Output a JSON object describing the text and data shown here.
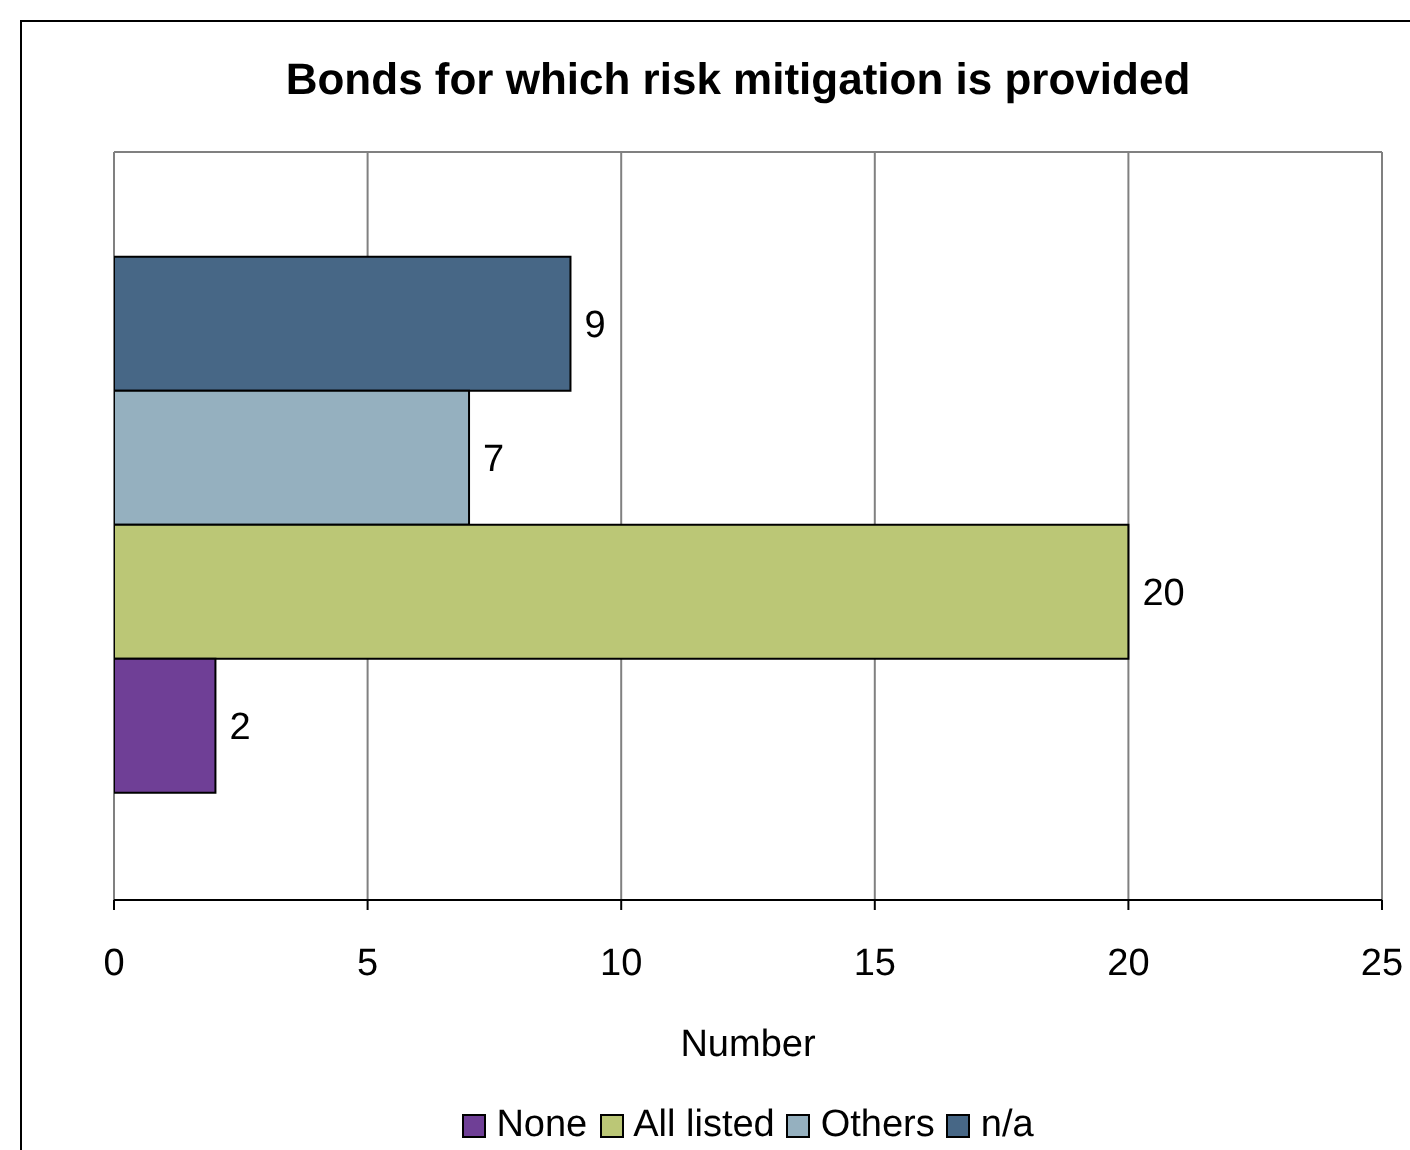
{
  "chart_data": {
    "type": "bar",
    "orientation": "horizontal",
    "title": "Bonds for which risk mitigation is provided",
    "xlabel": "Number",
    "categories": [
      null
    ],
    "series": [
      {
        "name": "None",
        "color": "#6f3f96",
        "values": [
          2
        ]
      },
      {
        "name": "All listed",
        "color": "#bbc776",
        "values": [
          20
        ]
      },
      {
        "name": "Others",
        "color": "#95b0bf",
        "values": [
          7
        ]
      },
      {
        "name": "n/a",
        "color": "#476786",
        "values": [
          9
        ]
      }
    ],
    "xlim": [
      0,
      25
    ],
    "xticks": [
      0,
      5,
      10,
      15,
      20,
      25
    ],
    "grid": "x",
    "legend": "bottom",
    "data_labels": true,
    "tick_labels": "x"
  }
}
